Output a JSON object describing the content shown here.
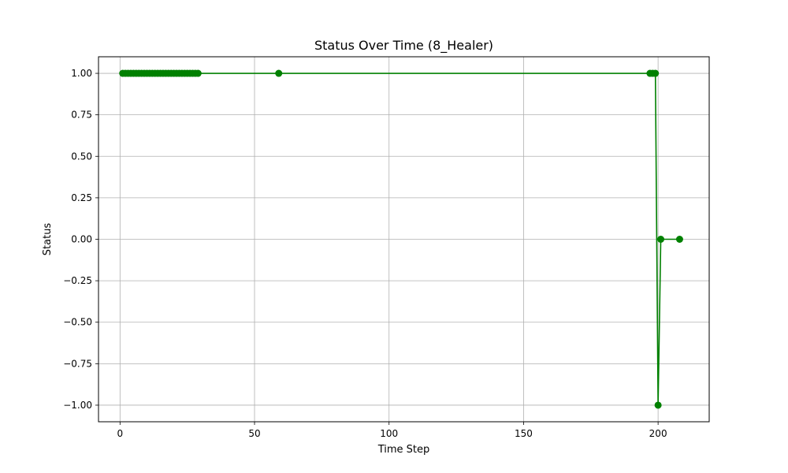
{
  "chart_data": {
    "type": "line",
    "title": "Status Over Time (8_Healer)",
    "xlabel": "Time Step",
    "ylabel": "Status",
    "xlim": [
      -8,
      219
    ],
    "ylim": [
      -1.1,
      1.1
    ],
    "xticks": [
      0,
      50,
      100,
      150,
      200
    ],
    "xtick_labels": [
      "0",
      "50",
      "100",
      "150",
      "200"
    ],
    "yticks": [
      -1.0,
      -0.75,
      -0.5,
      -0.25,
      0.0,
      0.25,
      0.5,
      0.75,
      1.0
    ],
    "ytick_labels": [
      "−1.00",
      "−0.75",
      "−0.50",
      "−0.25",
      "0.00",
      "0.25",
      "0.50",
      "0.75",
      "1.00"
    ],
    "grid": true,
    "legend": "none",
    "series": [
      {
        "color": "#008000",
        "marker": "circle",
        "x": [
          1,
          2,
          3,
          4,
          5,
          6,
          7,
          8,
          9,
          10,
          11,
          12,
          13,
          14,
          15,
          16,
          17,
          18,
          19,
          20,
          21,
          22,
          23,
          24,
          25,
          26,
          27,
          28,
          29,
          59,
          197,
          198,
          199,
          200,
          201,
          208
        ],
        "y": [
          1,
          1,
          1,
          1,
          1,
          1,
          1,
          1,
          1,
          1,
          1,
          1,
          1,
          1,
          1,
          1,
          1,
          1,
          1,
          1,
          1,
          1,
          1,
          1,
          1,
          1,
          1,
          1,
          1,
          1,
          1,
          1,
          1,
          -1,
          0,
          0
        ]
      }
    ]
  }
}
